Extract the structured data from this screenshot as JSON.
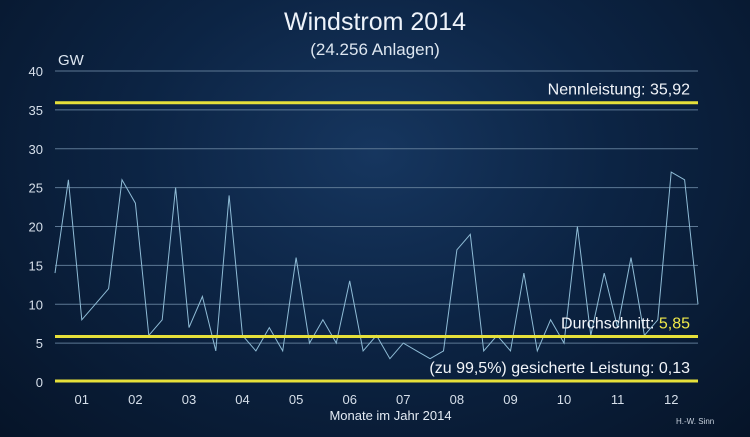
{
  "header": {
    "title": "Windstrom 2014",
    "subtitle": "(24.256 Anlagen)",
    "unit": "GW",
    "credit": "H.-W. Sinn"
  },
  "chart_data": {
    "type": "line",
    "title": "Windstrom 2014",
    "subtitle": "(24.256 Anlagen)",
    "xlabel": "Monate im Jahr 2014",
    "ylabel": "GW",
    "ylim": [
      0,
      40
    ],
    "yticks": [
      0,
      5,
      10,
      15,
      20,
      25,
      30,
      35,
      40
    ],
    "xticks": [
      "01",
      "02",
      "03",
      "04",
      "05",
      "06",
      "07",
      "08",
      "09",
      "10",
      "11",
      "12"
    ],
    "grid": true,
    "colors": {
      "series": "#8fbcd6",
      "reference": "#e6e03a"
    },
    "reference_lines": [
      {
        "label": "Nennleistung:",
        "value_text": "35,92",
        "y": 35.92
      },
      {
        "label": "Durchschnitt:",
        "value_text": "5,85",
        "y": 5.85
      },
      {
        "label": "(zu 99,5%) gesicherte Leistung:",
        "value_text": "0,13",
        "y": 0.13
      }
    ],
    "series": [
      {
        "x": [
          0,
          0.25,
          0.5,
          0.75,
          1,
          1.25,
          1.5,
          1.75,
          2,
          2.25,
          2.5,
          2.75,
          3,
          3.25,
          3.5,
          3.75,
          4,
          4.25,
          4.5,
          4.75,
          5,
          5.25,
          5.5,
          5.75,
          6,
          6.25,
          6.5,
          6.75,
          7,
          7.25,
          7.5,
          7.75,
          8,
          8.25,
          8.5,
          8.75,
          9,
          9.25,
          9.5,
          9.75,
          10,
          10.25,
          10.5,
          10.75,
          11,
          11.25,
          11.5,
          11.75,
          12
        ],
        "values": [
          14,
          26,
          8,
          10,
          12,
          26,
          23,
          6,
          8,
          25,
          7,
          11,
          4,
          24,
          6,
          4,
          7,
          4,
          16,
          5,
          8,
          5,
          13,
          4,
          6,
          3,
          5,
          4,
          3,
          4,
          17,
          19,
          4,
          6,
          4,
          14,
          4,
          8,
          5,
          20,
          6,
          14,
          7,
          16,
          6,
          8,
          27,
          26,
          10
        ]
      }
    ]
  }
}
